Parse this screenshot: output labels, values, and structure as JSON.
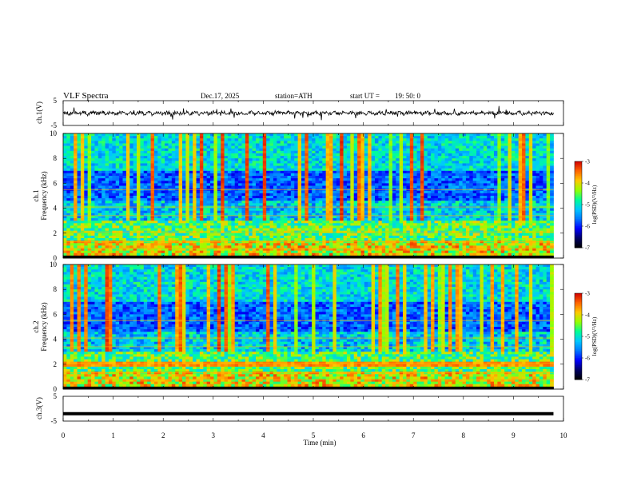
{
  "header": {
    "title": "VLF  Spectra",
    "date": "Dec.17, 2025",
    "station": "station=ATH",
    "start_label": "start  UT  =",
    "start_time": "19: 50: 0"
  },
  "colors": {
    "trace": "#000000",
    "background": "#ffffff",
    "colormap": [
      "#000000",
      "#000066",
      "#0000ff",
      "#0078ff",
      "#00c8ff",
      "#00ff96",
      "#96ff00",
      "#ffc800",
      "#ff6400",
      "#d00000",
      "#ffffff"
    ]
  },
  "chart_data": [
    {
      "type": "line",
      "panel": "ch1-waveform",
      "ylabel": "ch.1(V)",
      "ylim": [
        -5,
        5
      ],
      "yticks": [
        "5",
        "-5"
      ],
      "xlim": [
        0,
        10
      ],
      "series": [
        {
          "baseline": 0,
          "amplitude": 1,
          "x_end": 9.8
        }
      ]
    },
    {
      "type": "heatmap",
      "panel": "ch1-spectrogram",
      "ylabel_channel": "ch.1",
      "ylabel": "Frequency  (kHz)",
      "ylim": [
        0,
        10
      ],
      "yticks": [
        "0",
        "2",
        "4",
        "6",
        "8",
        "10"
      ],
      "xlim": [
        0,
        10
      ],
      "x_end": 9.8,
      "colorbar": {
        "label": "log(PSD)(V²/Hz)",
        "range": [
          -7,
          -3
        ],
        "ticks": [
          "-3",
          "-4",
          "-5",
          "-6",
          "-7"
        ]
      }
    },
    {
      "type": "heatmap",
      "panel": "ch2-spectrogram",
      "ylabel_channel": "ch.2",
      "ylabel": "Frequency  (kHz)",
      "ylim": [
        0,
        10
      ],
      "yticks": [
        "0",
        "2",
        "4",
        "6",
        "8",
        "10"
      ],
      "xlim": [
        0,
        10
      ],
      "x_end": 9.8,
      "colorbar": {
        "label": "log(PSD)(V²/Hz)",
        "range": [
          -7,
          -3
        ],
        "ticks": [
          "-3",
          "-4",
          "-5",
          "-6",
          "-7"
        ]
      }
    },
    {
      "type": "line",
      "panel": "ch3-waveform",
      "ylabel": "ch.3(V)",
      "ylim": [
        -5,
        5
      ],
      "yticks": [
        "5",
        "-5"
      ],
      "xlim": [
        0,
        10
      ],
      "xlabel": "Time  (min)",
      "xticks": [
        "0",
        "1",
        "2",
        "3",
        "4",
        "5",
        "6",
        "7",
        "8",
        "9",
        "10"
      ],
      "series": [
        {
          "value": -2,
          "x_end": 9.8
        }
      ]
    }
  ]
}
